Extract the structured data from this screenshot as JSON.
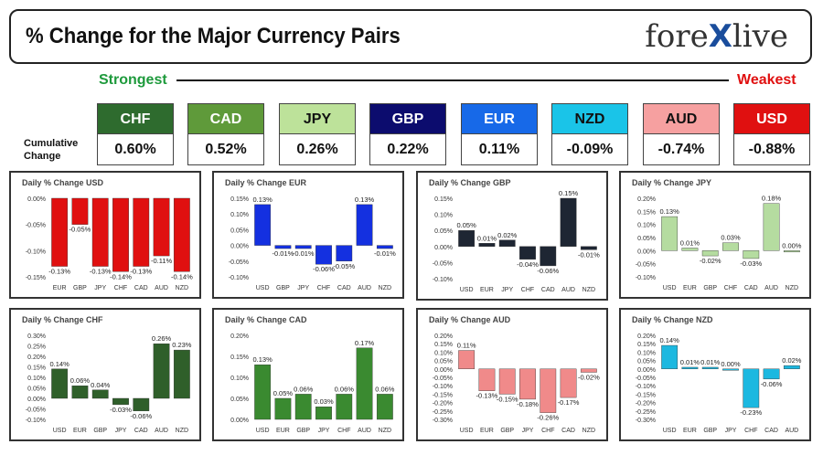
{
  "header": {
    "title": "% Change for the Major Currency Pairs",
    "logo_left": "fore",
    "logo_x": "X",
    "logo_right": "live"
  },
  "strongest_label": "Strongest",
  "weakest_label": "Weakest",
  "cumulative_label_line1": "Cumulative",
  "cumulative_label_line2": "Change",
  "currencies": [
    {
      "code": "CHF",
      "value": "0.60%",
      "bg": "#2e6b2e",
      "fg": "#ffffff"
    },
    {
      "code": "CAD",
      "value": "0.52%",
      "bg": "#5f9a3a",
      "fg": "#ffffff"
    },
    {
      "code": "JPY",
      "value": "0.26%",
      "bg": "#bde29a",
      "fg": "#111111"
    },
    {
      "code": "GBP",
      "value": "0.22%",
      "bg": "#0c0c6e",
      "fg": "#ffffff"
    },
    {
      "code": "EUR",
      "value": "0.11%",
      "bg": "#1769e8",
      "fg": "#ffffff"
    },
    {
      "code": "NZD",
      "value": "-0.09%",
      "bg": "#1ac4e8",
      "fg": "#111111"
    },
    {
      "code": "AUD",
      "value": "-0.74%",
      "bg": "#f6a0a0",
      "fg": "#111111"
    },
    {
      "code": "USD",
      "value": "-0.88%",
      "bg": "#e01010",
      "fg": "#ffffff"
    }
  ],
  "chart_data": [
    {
      "type": "bar",
      "title": "Daily % Change USD",
      "categories": [
        "EUR",
        "GBP",
        "JPY",
        "CHF",
        "CAD",
        "AUD",
        "NZD"
      ],
      "values": [
        -0.13,
        -0.05,
        -0.13,
        -0.14,
        -0.13,
        -0.11,
        -0.14
      ],
      "labels": [
        "-0.13%",
        "-0.05%",
        "-0.13%",
        "-0.14%",
        "-0.13%",
        "-0.11%",
        "-0.14%"
      ],
      "ylim": [
        -0.15,
        0.0
      ],
      "ticks": [
        0,
        -0.05,
        -0.1,
        -0.15
      ],
      "tick_labels": [
        "0.00%",
        "-0.05%",
        "-0.10%",
        "-0.15%"
      ],
      "color": "#e01010"
    },
    {
      "type": "bar",
      "title": "Daily % Change EUR",
      "categories": [
        "USD",
        "GBP",
        "JPY",
        "CHF",
        "CAD",
        "AUD",
        "NZD"
      ],
      "values": [
        0.13,
        -0.01,
        -0.01,
        -0.06,
        -0.05,
        0.13,
        -0.01
      ],
      "labels": [
        "0.13%",
        "-0.01%",
        "-0.01%",
        "-0.06%",
        "-0.05%",
        "0.13%",
        "-0.01%"
      ],
      "ylim": [
        -0.1,
        0.15
      ],
      "ticks": [
        0.15,
        0.1,
        0.05,
        0,
        -0.05,
        -0.1
      ],
      "tick_labels": [
        "0.15%",
        "0.10%",
        "0.05%",
        "0.00%",
        "-0.05%",
        "-0.10%"
      ],
      "color": "#1430e0"
    },
    {
      "type": "bar",
      "title": "Daily % Change GBP",
      "categories": [
        "USD",
        "EUR",
        "JPY",
        "CHF",
        "CAD",
        "AUD",
        "NZD"
      ],
      "values": [
        0.05,
        0.01,
        0.02,
        -0.04,
        -0.06,
        0.15,
        -0.01
      ],
      "labels": [
        "0.05%",
        "0.01%",
        "0.02%",
        "-0.04%",
        "-0.06%",
        "0.15%",
        "-0.01%"
      ],
      "ylim": [
        -0.1,
        0.15
      ],
      "ticks": [
        0.15,
        0.1,
        0.05,
        0,
        -0.05,
        -0.1
      ],
      "tick_labels": [
        "0.15%",
        "0.10%",
        "0.05%",
        "0.00%",
        "-0.05%",
        "-0.10%"
      ],
      "color": "#1e2633"
    },
    {
      "type": "bar",
      "title": "Daily % Change JPY",
      "categories": [
        "USD",
        "EUR",
        "GBP",
        "CHF",
        "CAD",
        "AUD",
        "NZD"
      ],
      "values": [
        0.13,
        0.01,
        -0.02,
        0.03,
        -0.03,
        0.18,
        0.0
      ],
      "labels": [
        "0.13%",
        "0.01%",
        "-0.02%",
        "0.03%",
        "-0.03%",
        "0.18%",
        "0.00%"
      ],
      "ylim": [
        -0.1,
        0.2
      ],
      "ticks": [
        0.2,
        0.15,
        0.1,
        0.05,
        0,
        -0.05,
        -0.1
      ],
      "tick_labels": [
        "0.20%",
        "0.15%",
        "0.10%",
        "0.05%",
        "0.00%",
        "-0.05%",
        "-0.10%"
      ],
      "color": "#b5dca0"
    },
    {
      "type": "bar",
      "title": "Daily % Change CHF",
      "categories": [
        "USD",
        "EUR",
        "GBP",
        "JPY",
        "CAD",
        "AUD",
        "NZD"
      ],
      "values": [
        0.14,
        0.06,
        0.04,
        -0.03,
        -0.06,
        0.26,
        0.23
      ],
      "labels": [
        "0.14%",
        "0.06%",
        "0.04%",
        "-0.03%",
        "-0.06%",
        "0.26%",
        "0.23%"
      ],
      "ylim": [
        -0.1,
        0.3
      ],
      "ticks": [
        0.3,
        0.25,
        0.2,
        0.15,
        0.1,
        0.05,
        0,
        -0.05,
        -0.1
      ],
      "tick_labels": [
        "0.30%",
        "0.25%",
        "0.20%",
        "0.15%",
        "0.10%",
        "0.05%",
        "0.00%",
        "-0.05%",
        "-0.10%"
      ],
      "color": "#2f5f2a"
    },
    {
      "type": "bar",
      "title": "Daily % Change CAD",
      "categories": [
        "USD",
        "EUR",
        "GBP",
        "JPY",
        "CHF",
        "AUD",
        "NZD"
      ],
      "values": [
        0.13,
        0.05,
        0.06,
        0.03,
        0.06,
        0.17,
        0.06
      ],
      "labels": [
        "0.13%",
        "0.05%",
        "0.06%",
        "0.03%",
        "0.06%",
        "0.17%",
        "0.06%"
      ],
      "ylim": [
        0.0,
        0.2
      ],
      "ticks": [
        0.2,
        0.15,
        0.1,
        0.05,
        0
      ],
      "tick_labels": [
        "0.20%",
        "0.15%",
        "0.10%",
        "0.05%",
        "0.00%"
      ],
      "color": "#3a8a30"
    },
    {
      "type": "bar",
      "title": "Daily % Change AUD",
      "categories": [
        "USD",
        "EUR",
        "GBP",
        "JPY",
        "CHF",
        "CAD",
        "NZD"
      ],
      "values": [
        0.11,
        -0.13,
        -0.15,
        -0.18,
        -0.26,
        -0.17,
        -0.02
      ],
      "labels": [
        "0.11%",
        "-0.13%",
        "-0.15%",
        "-0.18%",
        "-0.26%",
        "-0.17%",
        "-0.02%"
      ],
      "ylim": [
        -0.3,
        0.2
      ],
      "ticks": [
        0.2,
        0.15,
        0.1,
        0.05,
        0,
        -0.05,
        -0.1,
        -0.15,
        -0.2,
        -0.25,
        -0.3
      ],
      "tick_labels": [
        "0.20%",
        "0.15%",
        "0.10%",
        "0.05%",
        "0.00%",
        "-0.05%",
        "-0.10%",
        "-0.15%",
        "-0.20%",
        "-0.25%",
        "-0.30%"
      ],
      "color": "#f08a8a"
    },
    {
      "type": "bar",
      "title": "Daily % Change NZD",
      "categories": [
        "USD",
        "EUR",
        "GBP",
        "JPY",
        "CHF",
        "CAD",
        "AUD"
      ],
      "values": [
        0.14,
        0.01,
        0.01,
        0.0,
        -0.23,
        -0.06,
        0.02
      ],
      "labels": [
        "0.14%",
        "0.01%",
        "0.01%",
        "0.00%",
        "-0.23%",
        "-0.06%",
        "0.02%"
      ],
      "ylim": [
        -0.3,
        0.2
      ],
      "ticks": [
        0.2,
        0.15,
        0.1,
        0.05,
        0,
        -0.05,
        -0.1,
        -0.15,
        -0.2,
        -0.25,
        -0.3
      ],
      "tick_labels": [
        "0.20%",
        "0.15%",
        "0.10%",
        "0.05%",
        "0.00%",
        "-0.05%",
        "-0.10%",
        "-0.15%",
        "-0.20%",
        "-0.25%",
        "-0.30%"
      ],
      "color": "#1cb8e0"
    }
  ]
}
